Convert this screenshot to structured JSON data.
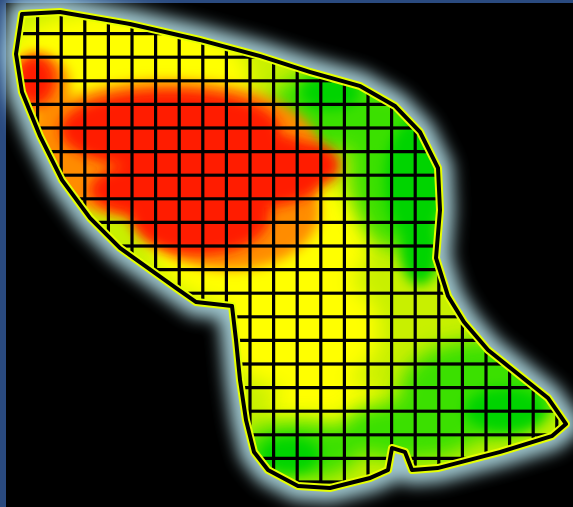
{
  "map": {
    "kind": "field-yield-heatmap",
    "palette": {
      "background": "#000000",
      "frame": "#2a4a7f",
      "red": "#ff1a00",
      "orange": "#ff8c00",
      "yellow": "#ffff00",
      "yellow_green": "#c8f000",
      "green": "#3ae000",
      "bright_green": "#00d400",
      "halo": "#b9e7f0",
      "boundary_outline": "#000000",
      "boundary_glow": "#e6ff00",
      "grid_lines": "#000000"
    },
    "zones": [
      {
        "name": "high",
        "color_key": "red"
      },
      {
        "name": "medium-high",
        "color_key": "orange"
      },
      {
        "name": "medium",
        "color_key": "yellow"
      },
      {
        "name": "medium-low",
        "color_key": "yellow_green"
      },
      {
        "name": "low",
        "color_key": "green"
      }
    ],
    "grid": {
      "columns": 19,
      "rows": 17,
      "visible": true
    },
    "icons": []
  }
}
